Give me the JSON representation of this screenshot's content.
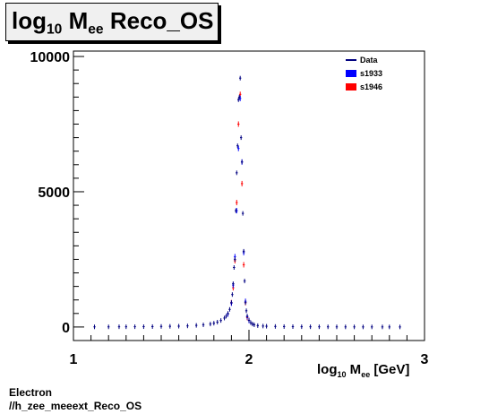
{
  "title": {
    "main": "log",
    "sub": "10",
    "mid": " M",
    "sub2": "ee",
    "rest": " Reco_OS"
  },
  "x_axis_label": {
    "main": "log",
    "sub": "10",
    "mid": " M",
    "sub2": "ee",
    "rest": " [GeV]"
  },
  "footer": {
    "line1": "Electron",
    "line2": "//h_zee_meeext_Reco_OS"
  },
  "colors": {
    "data": "#000080",
    "s1933": "#0000ff",
    "s1946": "#ff0000"
  },
  "chart_data": {
    "type": "scatter",
    "title": "log10 Mee Reco_OS",
    "xlabel": "log10 Mee [GeV]",
    "ylabel": "",
    "xlim": [
      1,
      3
    ],
    "ylim": [
      -500,
      10200
    ],
    "x_ticks": [
      1,
      2,
      3
    ],
    "y_ticks": [
      0,
      5000,
      10000
    ],
    "legend_position": "top-right",
    "grid": false,
    "series": [
      {
        "name": "Data",
        "style": "line-marker",
        "x": [
          1.12,
          1.2,
          1.26,
          1.3,
          1.35,
          1.4,
          1.45,
          1.5,
          1.55,
          1.6,
          1.65,
          1.7,
          1.74,
          1.78,
          1.8,
          1.82,
          1.84,
          1.86,
          1.87,
          1.88,
          1.89,
          1.9,
          1.905,
          1.91,
          1.915,
          1.92,
          1.925,
          1.93,
          1.935,
          1.94,
          1.945,
          1.95,
          1.955,
          1.96,
          1.965,
          1.97,
          1.975,
          1.98,
          1.985,
          1.99,
          2.0,
          2.01,
          2.02,
          2.03,
          2.05,
          2.08,
          2.1,
          2.15,
          2.2,
          2.25,
          2.3,
          2.35,
          2.4,
          2.45,
          2.5,
          2.55,
          2.6,
          2.65,
          2.7,
          2.76,
          2.8,
          2.86
        ],
        "y": [
          5,
          5,
          8,
          8,
          10,
          12,
          15,
          20,
          25,
          30,
          40,
          60,
          80,
          110,
          140,
          180,
          240,
          330,
          400,
          500,
          650,
          900,
          1200,
          1600,
          2200,
          2500,
          4300,
          5700,
          6700,
          8400,
          8500,
          9200,
          7000,
          6100,
          4200,
          2800,
          1700,
          900,
          600,
          400,
          250,
          160,
          110,
          80,
          50,
          35,
          28,
          20,
          15,
          12,
          10,
          8,
          7,
          6,
          5,
          4,
          4,
          3,
          3,
          3,
          2,
          2
        ]
      },
      {
        "name": "s1933",
        "style": "marker",
        "x": [
          1.88,
          1.9,
          1.91,
          1.92,
          1.93,
          1.94,
          1.95,
          1.96,
          1.97,
          1.98,
          1.99,
          2.0
        ],
        "y": [
          480,
          880,
          1550,
          2600,
          4300,
          6600,
          8450,
          6100,
          2750,
          950,
          380,
          240
        ]
      },
      {
        "name": "s1946",
        "style": "marker",
        "x": [
          1.9,
          1.91,
          1.92,
          1.93,
          1.94,
          1.95,
          1.96,
          1.97,
          1.98,
          1.99
        ],
        "y": [
          900,
          1450,
          2450,
          4600,
          7500,
          8600,
          5300,
          2300,
          900,
          350
        ]
      }
    ]
  }
}
